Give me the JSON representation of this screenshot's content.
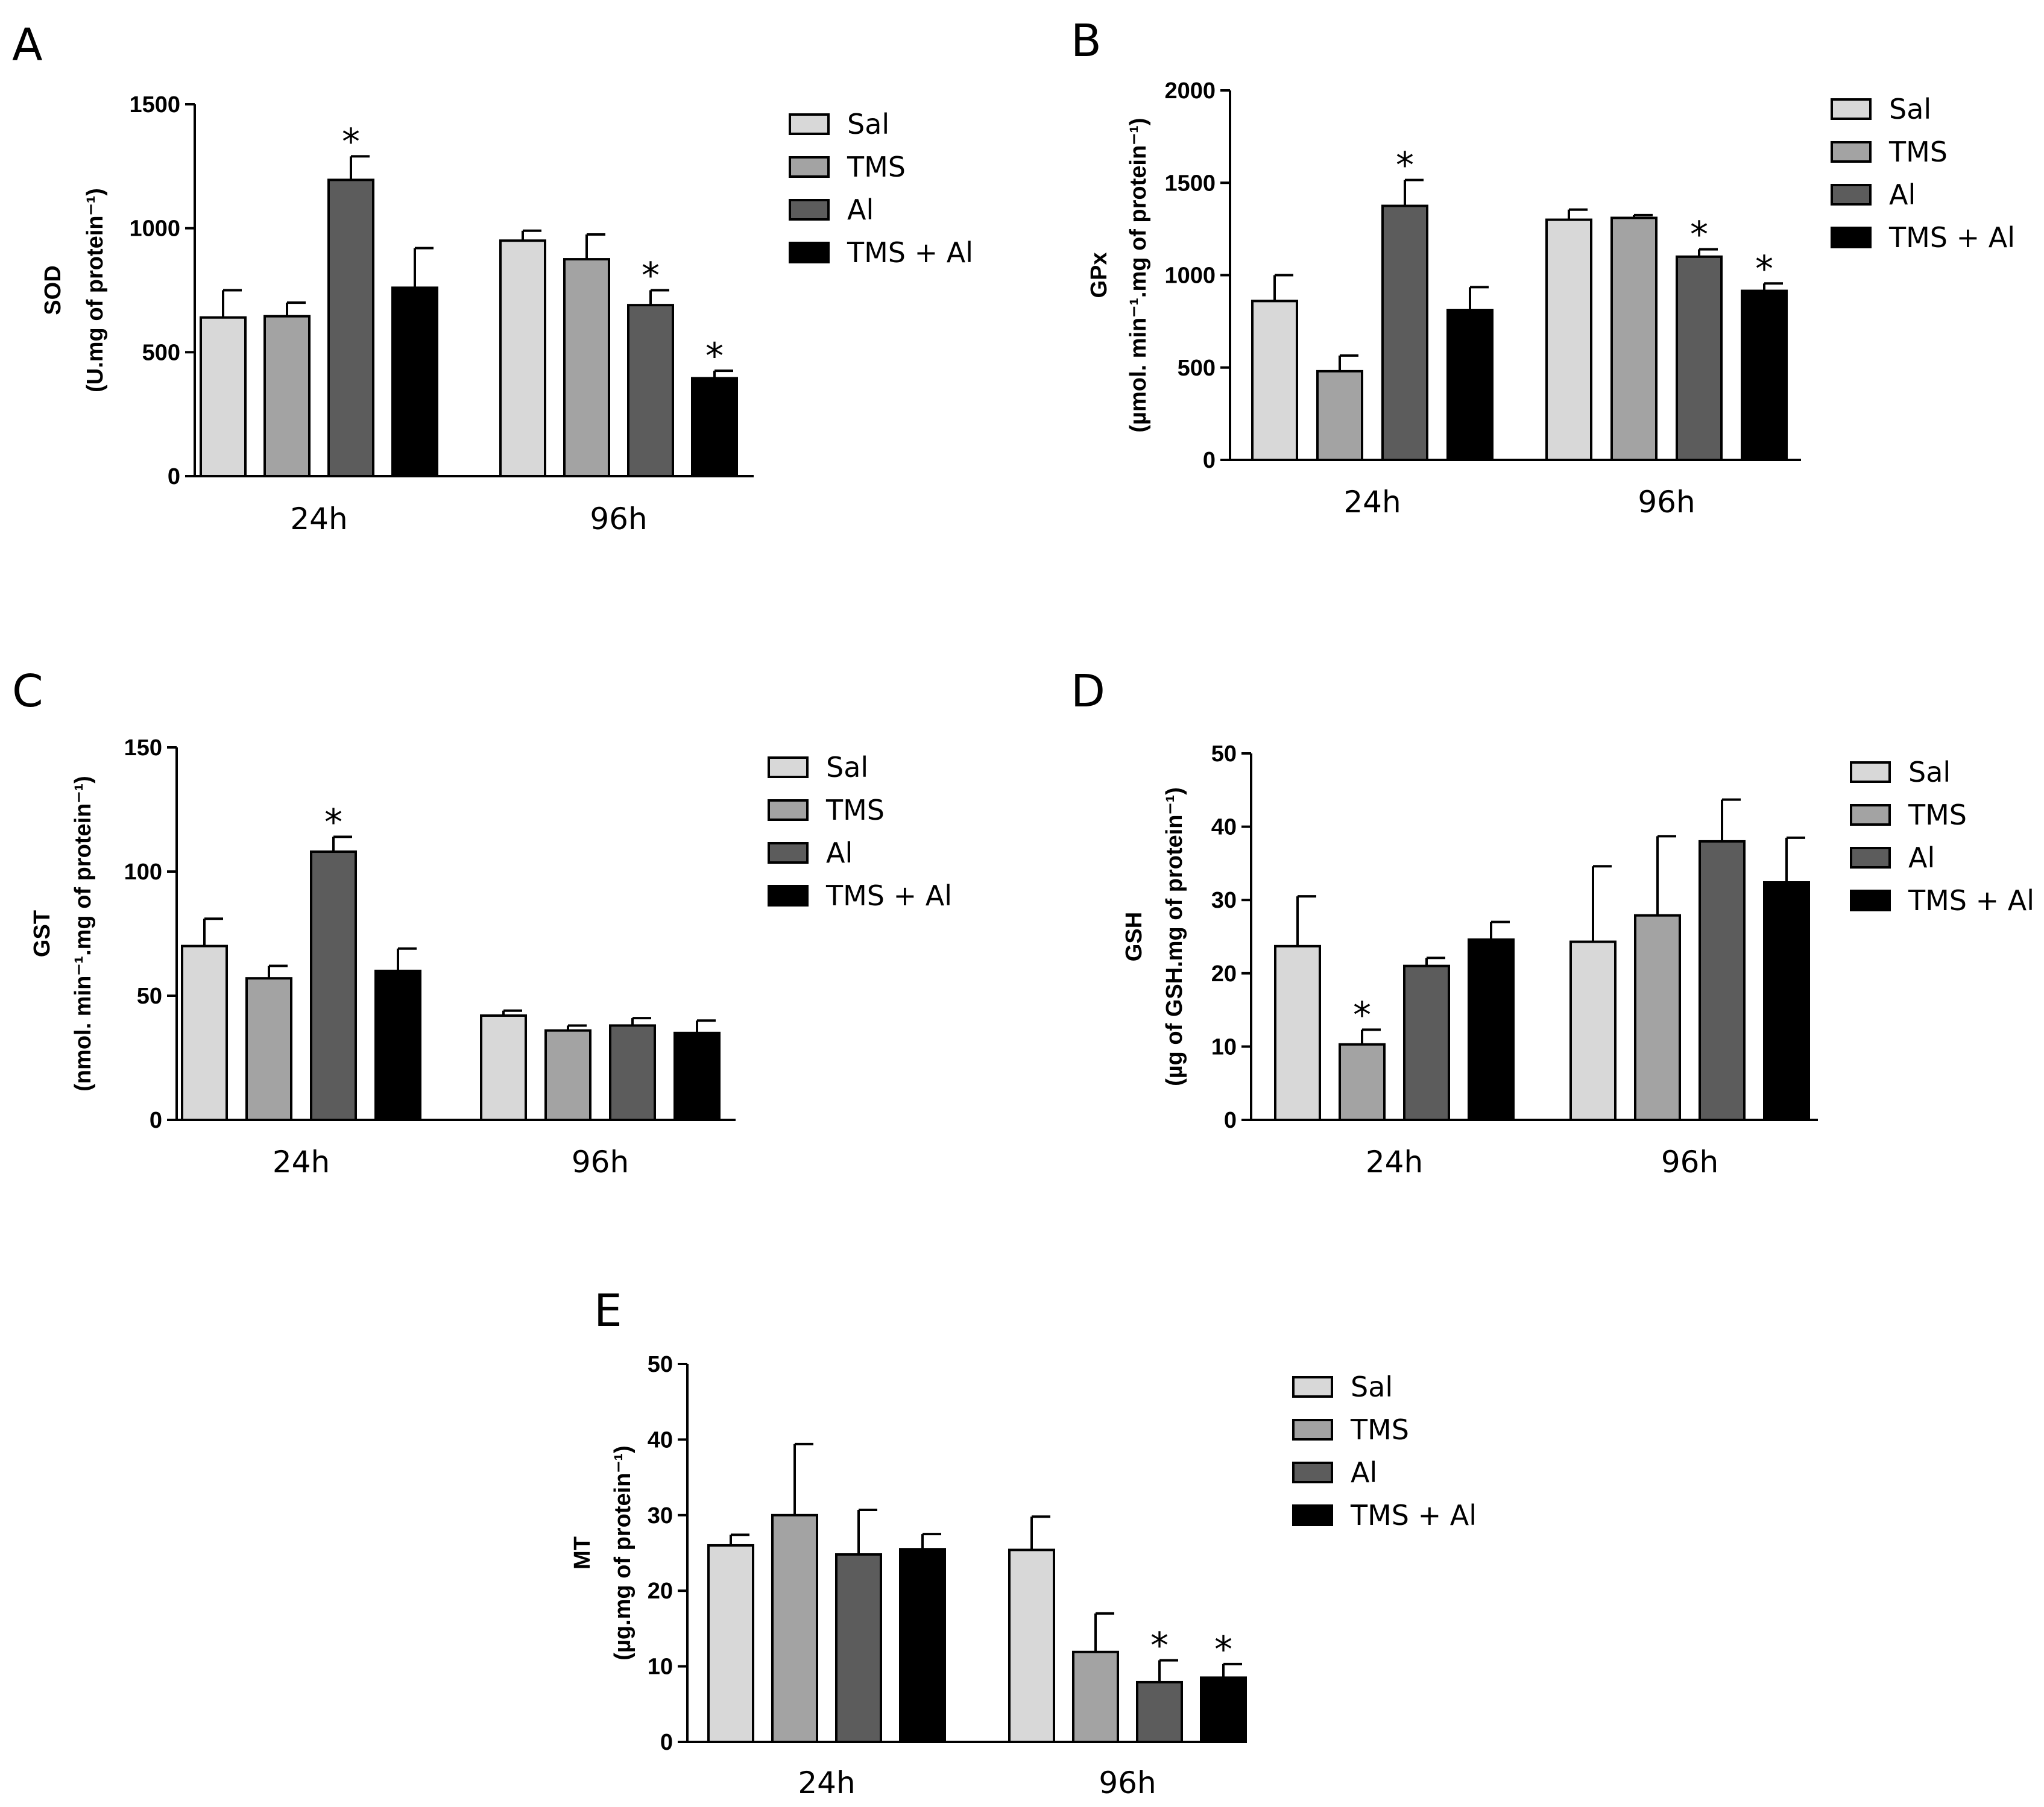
{
  "chart_data": [
    {
      "type": "bar",
      "panel_label": "A",
      "categories": [
        "24h",
        "96h"
      ],
      "ylabel": [
        "SOD",
        "(U.mg of protein⁻¹)"
      ],
      "ylim": [
        0,
        1500
      ],
      "yticks": [
        0,
        500,
        1000,
        1500
      ],
      "legend_position": "right",
      "series": [
        {
          "name": "Sal",
          "color": "#d8d8d8",
          "values": [
            640,
            950
          ],
          "errors": [
            110,
            40
          ],
          "significant": [
            false,
            false
          ]
        },
        {
          "name": "TMS",
          "color": "#a3a3a3",
          "values": [
            645,
            875
          ],
          "errors": [
            55,
            100
          ],
          "significant": [
            false,
            false
          ]
        },
        {
          "name": "Al",
          "color": "#5c5c5c",
          "values": [
            1195,
            690
          ],
          "errors": [
            95,
            60
          ],
          "significant": [
            true,
            true
          ]
        },
        {
          "name": "TMS + Al",
          "color": "#000000",
          "values": [
            760,
            395
          ],
          "errors": [
            160,
            30
          ],
          "significant": [
            false,
            true
          ]
        }
      ]
    },
    {
      "type": "bar",
      "panel_label": "B",
      "categories": [
        "24h",
        "96h"
      ],
      "ylabel": [
        "GPx",
        "(µmol. min⁻¹.mg of protein⁻¹)"
      ],
      "ylim": [
        0,
        2000
      ],
      "yticks": [
        0,
        500,
        1000,
        1500,
        2000
      ],
      "legend_position": "right",
      "series": [
        {
          "name": "Sal",
          "color": "#d8d8d8",
          "values": [
            860,
            1300
          ],
          "errors": [
            140,
            55
          ],
          "significant": [
            false,
            false
          ]
        },
        {
          "name": "TMS",
          "color": "#a3a3a3",
          "values": [
            480,
            1310
          ],
          "errors": [
            85,
            15
          ],
          "significant": [
            false,
            false
          ]
        },
        {
          "name": "Al",
          "color": "#5c5c5c",
          "values": [
            1375,
            1100
          ],
          "errors": [
            140,
            40
          ],
          "significant": [
            true,
            true
          ]
        },
        {
          "name": "TMS + Al",
          "color": "#000000",
          "values": [
            810,
            915
          ],
          "errors": [
            125,
            40
          ],
          "significant": [
            false,
            true
          ]
        }
      ]
    },
    {
      "type": "bar",
      "panel_label": "C",
      "categories": [
        "24h",
        "96h"
      ],
      "ylabel": [
        "GST",
        "(nmol. min⁻¹.mg of protein⁻¹)"
      ],
      "ylim": [
        0,
        150
      ],
      "yticks": [
        0,
        50,
        100,
        150
      ],
      "legend_position": "right",
      "series": [
        {
          "name": "Sal",
          "color": "#d8d8d8",
          "values": [
            70,
            42
          ],
          "errors": [
            11,
            2
          ],
          "significant": [
            false,
            false
          ]
        },
        {
          "name": "TMS",
          "color": "#a3a3a3",
          "values": [
            57,
            36
          ],
          "errors": [
            5,
            2
          ],
          "significant": [
            false,
            false
          ]
        },
        {
          "name": "Al",
          "color": "#5c5c5c",
          "values": [
            108,
            38
          ],
          "errors": [
            6,
            3
          ],
          "significant": [
            true,
            false
          ]
        },
        {
          "name": "TMS + Al",
          "color": "#000000",
          "values": [
            60,
            35
          ],
          "errors": [
            9,
            5
          ],
          "significant": [
            false,
            false
          ]
        }
      ]
    },
    {
      "type": "bar",
      "panel_label": "D",
      "categories": [
        "24h",
        "96h"
      ],
      "ylabel": [
        "GSH",
        "(µg of GSH.mg of protein⁻¹)"
      ],
      "ylim": [
        0,
        50
      ],
      "yticks": [
        0,
        10,
        20,
        30,
        40,
        50
      ],
      "legend_position": "right",
      "series": [
        {
          "name": "Sal",
          "color": "#d8d8d8",
          "values": [
            23.7,
            24.3
          ],
          "errors": [
            6.8,
            10.3
          ],
          "significant": [
            false,
            false
          ]
        },
        {
          "name": "TMS",
          "color": "#a3a3a3",
          "values": [
            10.3,
            27.9
          ],
          "errors": [
            2.0,
            10.8
          ],
          "significant": [
            true,
            false
          ]
        },
        {
          "name": "Al",
          "color": "#5c5c5c",
          "values": [
            21.0,
            38.0
          ],
          "errors": [
            1.1,
            5.7
          ],
          "significant": [
            false,
            false
          ]
        },
        {
          "name": "TMS + Al",
          "color": "#000000",
          "values": [
            24.6,
            32.4
          ],
          "errors": [
            2.4,
            6.1
          ],
          "significant": [
            false,
            false
          ]
        }
      ]
    },
    {
      "type": "bar",
      "panel_label": "E",
      "categories": [
        "24h",
        "96h"
      ],
      "ylabel": [
        "MT",
        "(µg.mg of protein⁻¹)"
      ],
      "ylim": [
        0,
        50
      ],
      "yticks": [
        0,
        10,
        20,
        30,
        40,
        50
      ],
      "legend_position": "right",
      "series": [
        {
          "name": "Sal",
          "color": "#d8d8d8",
          "values": [
            26.0,
            25.4
          ],
          "errors": [
            1.4,
            4.4
          ],
          "significant": [
            false,
            false
          ]
        },
        {
          "name": "TMS",
          "color": "#a3a3a3",
          "values": [
            30.0,
            11.9
          ],
          "errors": [
            9.4,
            5.1
          ],
          "significant": [
            false,
            false
          ]
        },
        {
          "name": "Al",
          "color": "#5c5c5c",
          "values": [
            24.8,
            7.9
          ],
          "errors": [
            5.9,
            2.9
          ],
          "significant": [
            false,
            true
          ]
        },
        {
          "name": "TMS + Al",
          "color": "#000000",
          "values": [
            25.5,
            8.5
          ],
          "errors": [
            2.0,
            1.8
          ],
          "significant": [
            false,
            true
          ]
        }
      ]
    }
  ]
}
